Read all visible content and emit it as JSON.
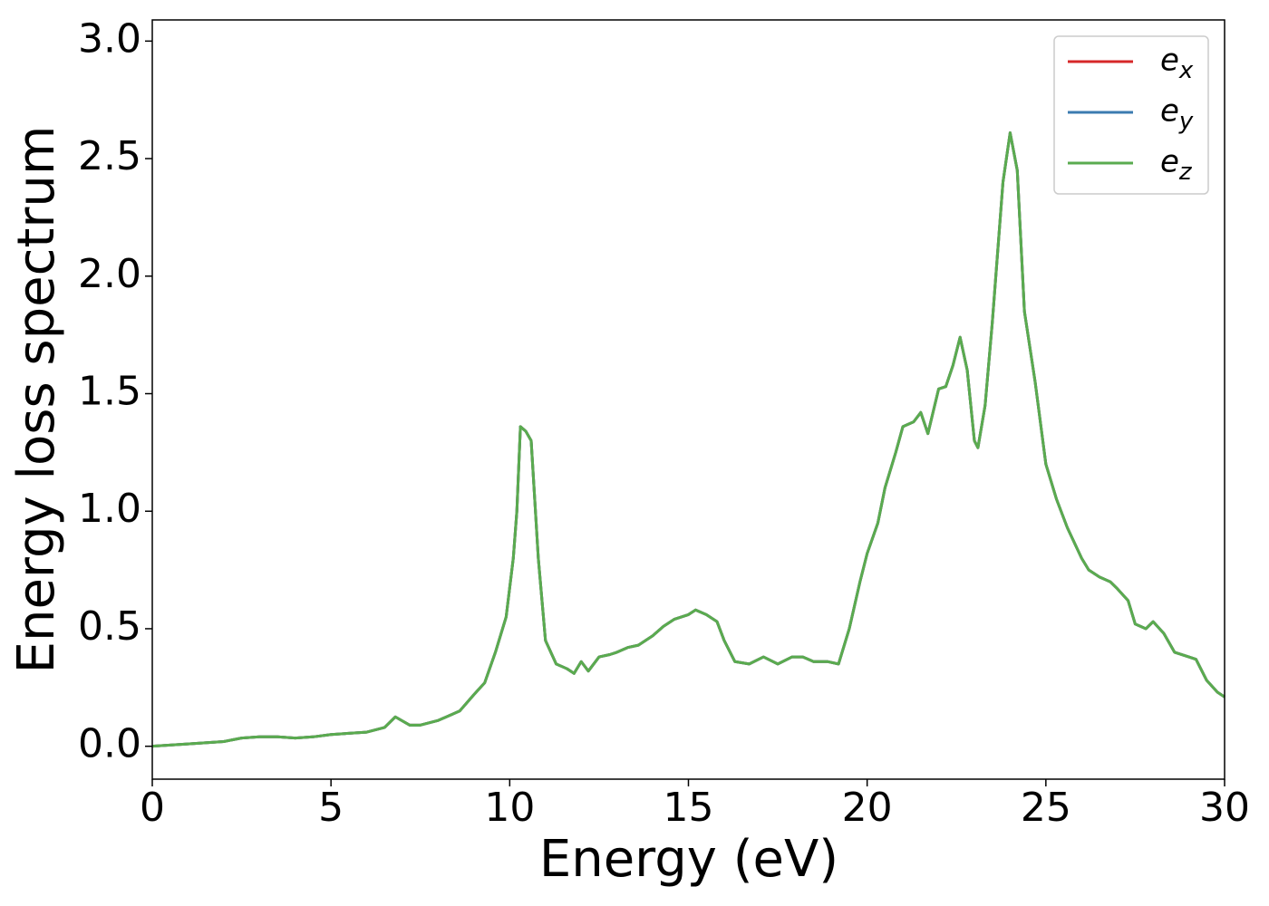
{
  "chart_data": {
    "type": "line",
    "xlabel": "Energy (eV)",
    "ylabel": "Energy loss spectrum",
    "x": [
      0,
      1,
      2,
      2.5,
      3,
      3.5,
      4,
      4.5,
      5,
      5.5,
      6,
      6.5,
      6.8,
      7.2,
      7.5,
      8,
      8.3,
      8.6,
      9,
      9.3,
      9.6,
      9.9,
      10.1,
      10.2,
      10.3,
      10.45,
      10.6,
      10.8,
      11,
      11.3,
      11.6,
      11.8,
      12,
      12.2,
      12.5,
      12.8,
      13,
      13.3,
      13.6,
      14,
      14.3,
      14.6,
      15,
      15.2,
      15.5,
      15.8,
      16,
      16.3,
      16.7,
      17.1,
      17.5,
      17.9,
      18.2,
      18.5,
      18.9,
      19.2,
      19.5,
      19.8,
      20,
      20.3,
      20.5,
      20.8,
      21,
      21.3,
      21.5,
      21.7,
      22,
      22.2,
      22.4,
      22.6,
      22.8,
      23,
      23.1,
      23.3,
      23.5,
      23.8,
      24,
      24.2,
      24.4,
      24.7,
      25,
      25.3,
      25.6,
      26,
      26.2,
      26.5,
      26.8,
      27,
      27.3,
      27.5,
      27.8,
      28,
      28.3,
      28.6,
      29,
      29.2,
      29.5,
      29.8,
      30
    ],
    "series": [
      {
        "name": "e_x",
        "color": "#d62728",
        "values": [
          0,
          0.01,
          0.02,
          0.035,
          0.04,
          0.04,
          0.035,
          0.04,
          0.05,
          0.055,
          0.06,
          0.08,
          0.125,
          0.09,
          0.09,
          0.11,
          0.13,
          0.15,
          0.22,
          0.27,
          0.4,
          0.55,
          0.8,
          1.0,
          1.36,
          1.34,
          1.3,
          0.8,
          0.45,
          0.35,
          0.33,
          0.31,
          0.36,
          0.32,
          0.38,
          0.39,
          0.4,
          0.42,
          0.43,
          0.47,
          0.51,
          0.54,
          0.56,
          0.58,
          0.56,
          0.53,
          0.45,
          0.36,
          0.35,
          0.38,
          0.35,
          0.38,
          0.38,
          0.36,
          0.36,
          0.35,
          0.5,
          0.7,
          0.82,
          0.95,
          1.1,
          1.25,
          1.36,
          1.38,
          1.42,
          1.33,
          1.52,
          1.53,
          1.62,
          1.74,
          1.6,
          1.3,
          1.27,
          1.45,
          1.8,
          2.4,
          2.61,
          2.45,
          1.85,
          1.55,
          1.2,
          1.05,
          0.93,
          0.8,
          0.75,
          0.72,
          0.7,
          0.67,
          0.62,
          0.52,
          0.5,
          0.53,
          0.48,
          0.4,
          0.38,
          0.37,
          0.28,
          0.23,
          0.21
        ]
      },
      {
        "name": "e_y",
        "color": "#3b7bb0",
        "values": [
          0,
          0.01,
          0.02,
          0.035,
          0.04,
          0.04,
          0.035,
          0.04,
          0.05,
          0.055,
          0.06,
          0.08,
          0.125,
          0.09,
          0.09,
          0.11,
          0.13,
          0.15,
          0.22,
          0.27,
          0.4,
          0.55,
          0.8,
          1.0,
          1.36,
          1.34,
          1.3,
          0.8,
          0.45,
          0.35,
          0.33,
          0.31,
          0.36,
          0.32,
          0.38,
          0.39,
          0.4,
          0.42,
          0.43,
          0.47,
          0.51,
          0.54,
          0.56,
          0.58,
          0.56,
          0.53,
          0.45,
          0.36,
          0.35,
          0.38,
          0.35,
          0.38,
          0.38,
          0.36,
          0.36,
          0.35,
          0.5,
          0.7,
          0.82,
          0.95,
          1.1,
          1.25,
          1.36,
          1.38,
          1.42,
          1.33,
          1.52,
          1.53,
          1.62,
          1.74,
          1.6,
          1.3,
          1.27,
          1.45,
          1.8,
          2.4,
          2.61,
          2.45,
          1.85,
          1.55,
          1.2,
          1.05,
          0.93,
          0.8,
          0.75,
          0.72,
          0.7,
          0.67,
          0.62,
          0.52,
          0.5,
          0.53,
          0.48,
          0.4,
          0.38,
          0.37,
          0.28,
          0.23,
          0.21
        ]
      },
      {
        "name": "e_z",
        "color": "#5aab4f",
        "values": [
          0,
          0.01,
          0.02,
          0.035,
          0.04,
          0.04,
          0.035,
          0.04,
          0.05,
          0.055,
          0.06,
          0.08,
          0.125,
          0.09,
          0.09,
          0.11,
          0.13,
          0.15,
          0.22,
          0.27,
          0.4,
          0.55,
          0.8,
          1.0,
          1.36,
          1.34,
          1.3,
          0.8,
          0.45,
          0.35,
          0.33,
          0.31,
          0.36,
          0.32,
          0.38,
          0.39,
          0.4,
          0.42,
          0.43,
          0.47,
          0.51,
          0.54,
          0.56,
          0.58,
          0.56,
          0.53,
          0.45,
          0.36,
          0.35,
          0.38,
          0.35,
          0.38,
          0.38,
          0.36,
          0.36,
          0.35,
          0.5,
          0.7,
          0.82,
          0.95,
          1.1,
          1.25,
          1.36,
          1.38,
          1.42,
          1.33,
          1.52,
          1.53,
          1.62,
          1.74,
          1.6,
          1.3,
          1.27,
          1.45,
          1.8,
          2.4,
          2.61,
          2.45,
          1.85,
          1.55,
          1.2,
          1.05,
          0.93,
          0.8,
          0.75,
          0.72,
          0.7,
          0.67,
          0.62,
          0.52,
          0.5,
          0.53,
          0.48,
          0.4,
          0.38,
          0.37,
          0.28,
          0.23,
          0.21
        ]
      }
    ],
    "xlim": [
      0,
      30
    ],
    "xticks": [
      0,
      5,
      10,
      15,
      20,
      25,
      30
    ],
    "ylim": [
      -0.14,
      3.09
    ],
    "yticks": [
      {
        "value": 0,
        "label": "0.0"
      },
      0.5,
      {
        "value": 1,
        "label": "1.0"
      },
      1.5,
      {
        "value": 2,
        "label": "2.0"
      },
      2.5,
      {
        "value": 3,
        "label": "3.0"
      }
    ],
    "legend": "upper right",
    "grid": false
  }
}
